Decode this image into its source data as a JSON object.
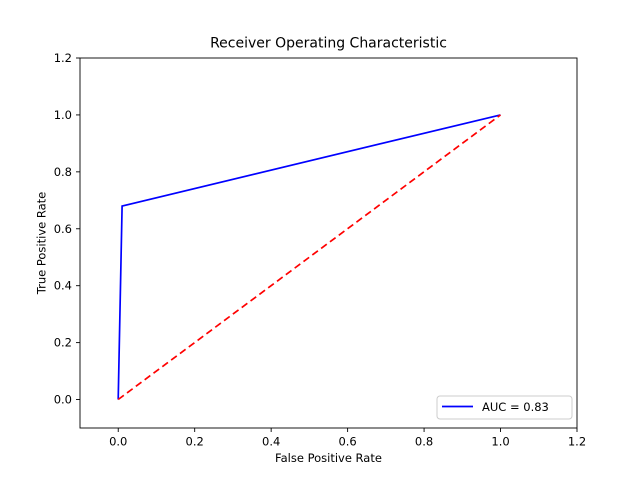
{
  "figure": {
    "kind": "matplotlib-roc-plot",
    "background": "#ffffff"
  },
  "chart_data": {
    "type": "line",
    "title": "Receiver Operating Characteristic",
    "xlabel": "False Positive Rate",
    "ylabel": "True Positive Rate",
    "xlim": [
      -0.1,
      1.2
    ],
    "ylim": [
      -0.1,
      1.2
    ],
    "xticks": [
      "0.0",
      "0.2",
      "0.4",
      "0.6",
      "0.8",
      "1.0",
      "1.2"
    ],
    "yticks": [
      "0.0",
      "0.2",
      "0.4",
      "0.6",
      "0.8",
      "1.0",
      "1.2"
    ],
    "grid": false,
    "legend_position": "lower right",
    "series": [
      {
        "name": "AUC = 0.83",
        "color": "#0000ff",
        "style": "solid",
        "x": [
          0.0,
          0.01,
          1.0
        ],
        "y": [
          0.0,
          0.68,
          1.0
        ]
      },
      {
        "name": "chance-diagonal",
        "color": "#ff0000",
        "style": "dashed",
        "in_legend": false,
        "x": [
          0.0,
          1.0
        ],
        "y": [
          0.0,
          1.0
        ]
      }
    ]
  },
  "legend": {
    "entry_label": "AUC = 0.83",
    "line_color": "#0000ff",
    "border_color": "#cccccc"
  },
  "colors": {
    "roc_line": "#0000ff",
    "chance_line": "#ff0000",
    "axes": "#000000",
    "background": "#ffffff"
  }
}
